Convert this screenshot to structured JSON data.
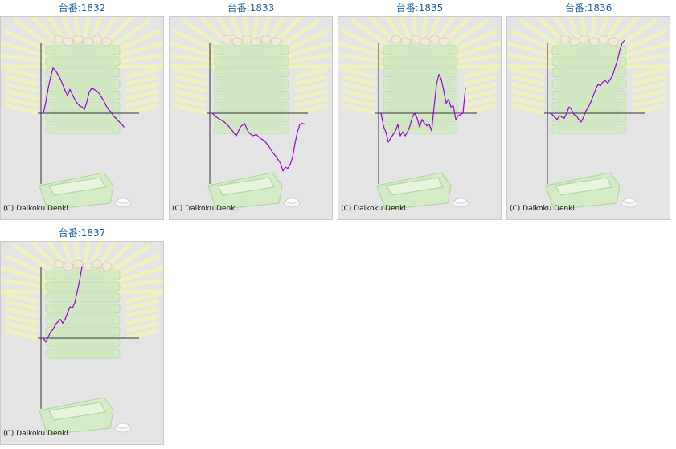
{
  "copyright": "(C) Daikoku Denki.",
  "colors": {
    "title": "#1f5f9e",
    "line": "#9900dd",
    "axis": "#333333",
    "panel": "#e4e4e4"
  },
  "machines": [
    {
      "title": "台番:1832"
    },
    {
      "title": "台番:1833"
    },
    {
      "title": "台番:1835"
    },
    {
      "title": "台番:1836"
    },
    {
      "title": "台番:1837"
    }
  ],
  "chart_data": [
    {
      "type": "line",
      "title": "台番:1832",
      "xlabel": "",
      "ylabel": "",
      "grid": false,
      "x": [
        0,
        3,
        6,
        9,
        12,
        15,
        18,
        21,
        24,
        27,
        30,
        33,
        36,
        39,
        42,
        45,
        48,
        51,
        54,
        57,
        60,
        63,
        66,
        69,
        72,
        75,
        78,
        81,
        84,
        87,
        90,
        93,
        96,
        99,
        100
      ],
      "y": [
        0,
        18,
        40,
        58,
        72,
        68,
        62,
        55,
        46,
        36,
        28,
        38,
        30,
        22,
        16,
        12,
        10,
        6,
        18,
        34,
        40,
        38,
        36,
        32,
        26,
        20,
        12,
        6,
        2,
        -4,
        -8,
        -12,
        -16,
        -20,
        -22
      ]
    },
    {
      "type": "line",
      "title": "台番:1833",
      "xlabel": "",
      "ylabel": "",
      "grid": false,
      "x": [
        0,
        5,
        10,
        15,
        20,
        25,
        30,
        35,
        40,
        45,
        50,
        55,
        60,
        65,
        70,
        75,
        80,
        85,
        88,
        91,
        94,
        97,
        100,
        103,
        106,
        109,
        112,
        115
      ],
      "y": [
        0,
        -6,
        -10,
        -14,
        -20,
        -28,
        -36,
        -22,
        -16,
        -30,
        -36,
        -34,
        -40,
        -44,
        -52,
        -62,
        -70,
        -80,
        -92,
        -86,
        -88,
        -82,
        -70,
        -48,
        -30,
        -18,
        -16,
        -18
      ]
    },
    {
      "type": "line",
      "title": "台番:1835",
      "xlabel": "",
      "ylabel": "",
      "grid": false,
      "x": [
        0,
        3,
        6,
        9,
        12,
        15,
        18,
        21,
        24,
        27,
        30,
        33,
        36,
        39,
        42,
        45,
        48,
        51,
        54,
        57,
        60,
        63,
        66,
        69,
        72,
        75,
        78,
        81,
        84,
        87,
        90,
        93,
        96,
        99,
        102,
        105
      ],
      "y": [
        0,
        -20,
        -30,
        -46,
        -40,
        -34,
        -28,
        -18,
        -36,
        -30,
        -36,
        -30,
        -20,
        -6,
        0,
        -8,
        -22,
        -10,
        -16,
        -20,
        -18,
        -28,
        10,
        46,
        62,
        54,
        36,
        16,
        22,
        10,
        12,
        -10,
        -4,
        -2,
        0,
        40
      ]
    },
    {
      "type": "line",
      "title": "台番:1836",
      "xlabel": "",
      "ylabel": "",
      "grid": false,
      "x": [
        0,
        3,
        6,
        9,
        12,
        15,
        18,
        21,
        24,
        27,
        30,
        33,
        36,
        39,
        42,
        45,
        48,
        51,
        54,
        57,
        60,
        63,
        66,
        69,
        72,
        75,
        78,
        81,
        84,
        87,
        90,
        93
      ],
      "y": [
        0,
        -2,
        -6,
        -10,
        -4,
        -6,
        -8,
        0,
        10,
        6,
        -2,
        -4,
        -10,
        -14,
        -6,
        4,
        10,
        18,
        28,
        38,
        46,
        44,
        50,
        52,
        48,
        54,
        60,
        72,
        84,
        100,
        112,
        116
      ]
    },
    {
      "type": "line",
      "title": "台番:1837",
      "xlabel": "",
      "ylabel": "",
      "grid": false,
      "x": [
        0,
        3,
        6,
        9,
        12,
        15,
        18,
        21,
        24,
        27,
        30,
        33,
        36,
        39,
        42,
        45,
        48
      ],
      "y": [
        0,
        -6,
        2,
        10,
        14,
        22,
        26,
        30,
        24,
        30,
        40,
        50,
        48,
        56,
        74,
        92,
        114
      ]
    }
  ]
}
